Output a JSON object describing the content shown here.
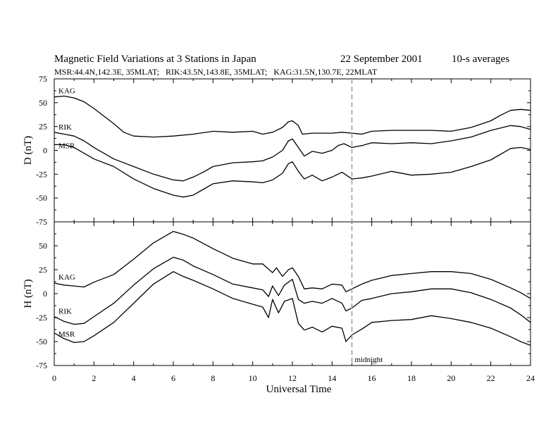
{
  "chart_data": {
    "type": "line",
    "title": "Magnetic Field Variations at 3 Stations in Japan",
    "date": "22 September 2001",
    "averaging": "10-s averages",
    "subtitle": "MSR:44.4N,142.3E, 35MLAT;   RIK:43.5N,143.8E, 35MLAT;   KAG:31.5N,130.7E, 22MLAT",
    "xlabel": "Universal Time",
    "xlim": [
      0,
      24
    ],
    "xticks": [
      "0",
      "2",
      "4",
      "6",
      "8",
      "10",
      "12",
      "14",
      "16",
      "18",
      "20",
      "22",
      "24"
    ],
    "marker": {
      "x": 15,
      "label": "midnight",
      "style": "dashed"
    },
    "panels": [
      {
        "ylabel": "D (nT)",
        "ylim": [
          -75,
          75
        ],
        "yticks": [
          "75",
          "50",
          "25",
          "0",
          "-25",
          "-50",
          "-75"
        ],
        "series": [
          {
            "name": "KAG",
            "points": [
              [
                0,
                56
              ],
              [
                0.5,
                57
              ],
              [
                1,
                55
              ],
              [
                1.5,
                51
              ],
              [
                2,
                44
              ],
              [
                3,
                28
              ],
              [
                3.5,
                19
              ],
              [
                4,
                15
              ],
              [
                5,
                14
              ],
              [
                6,
                15
              ],
              [
                7,
                17
              ],
              [
                8,
                20
              ],
              [
                9,
                19
              ],
              [
                10,
                20
              ],
              [
                10.5,
                17
              ],
              [
                11,
                19
              ],
              [
                11.5,
                24
              ],
              [
                11.8,
                30
              ],
              [
                12,
                31
              ],
              [
                12.3,
                26
              ],
              [
                12.5,
                17
              ],
              [
                13,
                18
              ],
              [
                13.5,
                18
              ],
              [
                14,
                18
              ],
              [
                14.5,
                19
              ],
              [
                15,
                18
              ],
              [
                15.5,
                17
              ],
              [
                16,
                20
              ],
              [
                17,
                21
              ],
              [
                18,
                21
              ],
              [
                19,
                21
              ],
              [
                20,
                20
              ],
              [
                21,
                24
              ],
              [
                22,
                31
              ],
              [
                22.5,
                37
              ],
              [
                23,
                42
              ],
              [
                23.5,
                43
              ],
              [
                24,
                42
              ]
            ]
          },
          {
            "name": "RIK",
            "points": [
              [
                0,
                19
              ],
              [
                0.5,
                17
              ],
              [
                1,
                15
              ],
              [
                1.5,
                10
              ],
              [
                2,
                3
              ],
              [
                3,
                -9
              ],
              [
                4,
                -17
              ],
              [
                5,
                -25
              ],
              [
                6,
                -31
              ],
              [
                6.5,
                -32
              ],
              [
                7,
                -28
              ],
              [
                7.5,
                -23
              ],
              [
                8,
                -17
              ],
              [
                9,
                -13
              ],
              [
                10,
                -12
              ],
              [
                10.5,
                -11
              ],
              [
                11,
                -7
              ],
              [
                11.5,
                0
              ],
              [
                11.8,
                10
              ],
              [
                12,
                12
              ],
              [
                12.3,
                3
              ],
              [
                12.6,
                -6
              ],
              [
                13,
                -1
              ],
              [
                13.5,
                -3
              ],
              [
                14,
                0
              ],
              [
                14.3,
                5
              ],
              [
                14.6,
                7
              ],
              [
                15,
                3
              ],
              [
                15.5,
                5
              ],
              [
                16,
                8
              ],
              [
                17,
                7
              ],
              [
                18,
                8
              ],
              [
                19,
                7
              ],
              [
                20,
                10
              ],
              [
                21,
                14
              ],
              [
                22,
                21
              ],
              [
                23,
                26
              ],
              [
                23.5,
                25
              ],
              [
                24,
                22
              ]
            ]
          },
          {
            "name": "MSR",
            "points": [
              [
                0,
                6
              ],
              [
                0.5,
                6
              ],
              [
                1,
                3
              ],
              [
                1.5,
                -3
              ],
              [
                2,
                -9
              ],
              [
                3,
                -17
              ],
              [
                4,
                -30
              ],
              [
                5,
                -40
              ],
              [
                6,
                -47
              ],
              [
                6.5,
                -49
              ],
              [
                7,
                -47
              ],
              [
                7.5,
                -41
              ],
              [
                8,
                -35
              ],
              [
                9,
                -32
              ],
              [
                10,
                -33
              ],
              [
                10.5,
                -34
              ],
              [
                11,
                -31
              ],
              [
                11.5,
                -24
              ],
              [
                11.8,
                -14
              ],
              [
                12,
                -12
              ],
              [
                12.3,
                -22
              ],
              [
                12.6,
                -30
              ],
              [
                13,
                -26
              ],
              [
                13.5,
                -32
              ],
              [
                14,
                -28
              ],
              [
                14.5,
                -23
              ],
              [
                15,
                -30
              ],
              [
                15.5,
                -29
              ],
              [
                16,
                -27
              ],
              [
                17,
                -22
              ],
              [
                18,
                -26
              ],
              [
                19,
                -25
              ],
              [
                20,
                -23
              ],
              [
                21,
                -17
              ],
              [
                22,
                -10
              ],
              [
                23,
                2
              ],
              [
                23.5,
                3
              ],
              [
                24,
                1
              ]
            ]
          }
        ]
      },
      {
        "ylabel": "H (nT)",
        "ylim": [
          -75,
          75
        ],
        "yticks": [
          "50",
          "25",
          "0",
          "-25",
          "-50",
          "-75"
        ],
        "series": [
          {
            "name": "KAG",
            "points": [
              [
                0,
                11
              ],
              [
                0.5,
                9
              ],
              [
                1,
                8
              ],
              [
                1.5,
                7
              ],
              [
                2,
                12
              ],
              [
                3,
                20
              ],
              [
                4,
                36
              ],
              [
                5,
                53
              ],
              [
                6,
                65
              ],
              [
                6.5,
                62
              ],
              [
                7,
                58
              ],
              [
                8,
                47
              ],
              [
                9,
                37
              ],
              [
                9.5,
                34
              ],
              [
                10,
                31
              ],
              [
                10.5,
                31
              ],
              [
                11,
                22
              ],
              [
                11.2,
                27
              ],
              [
                11.5,
                18
              ],
              [
                11.8,
                25
              ],
              [
                12,
                27
              ],
              [
                12.3,
                18
              ],
              [
                12.6,
                5
              ],
              [
                13,
                6
              ],
              [
                13.5,
                5
              ],
              [
                14,
                10
              ],
              [
                14.5,
                9
              ],
              [
                14.7,
                2
              ],
              [
                15,
                5
              ],
              [
                15.5,
                10
              ],
              [
                16,
                14
              ],
              [
                17,
                19
              ],
              [
                18,
                21
              ],
              [
                19,
                23
              ],
              [
                20,
                23
              ],
              [
                21,
                21
              ],
              [
                22,
                15
              ],
              [
                23,
                6
              ],
              [
                23.5,
                1
              ],
              [
                24,
                -5
              ]
            ]
          },
          {
            "name": "RIK",
            "points": [
              [
                0,
                -24
              ],
              [
                0.5,
                -29
              ],
              [
                1,
                -32
              ],
              [
                1.5,
                -31
              ],
              [
                2,
                -24
              ],
              [
                3,
                -10
              ],
              [
                4,
                9
              ],
              [
                5,
                26
              ],
              [
                6,
                38
              ],
              [
                6.5,
                35
              ],
              [
                7,
                29
              ],
              [
                8,
                20
              ],
              [
                9,
                10
              ],
              [
                10,
                6
              ],
              [
                10.5,
                4
              ],
              [
                10.8,
                -3
              ],
              [
                11,
                8
              ],
              [
                11.3,
                -2
              ],
              [
                11.6,
                9
              ],
              [
                12,
                15
              ],
              [
                12.3,
                -6
              ],
              [
                12.6,
                -10
              ],
              [
                13,
                -8
              ],
              [
                13.5,
                -10
              ],
              [
                14,
                -5
              ],
              [
                14.5,
                -10
              ],
              [
                14.7,
                -18
              ],
              [
                15,
                -15
              ],
              [
                15.5,
                -7
              ],
              [
                16,
                -5
              ],
              [
                17,
                0
              ],
              [
                18,
                2
              ],
              [
                19,
                5
              ],
              [
                20,
                5
              ],
              [
                21,
                1
              ],
              [
                22,
                -6
              ],
              [
                23,
                -15
              ],
              [
                23.5,
                -22
              ],
              [
                24,
                -30
              ]
            ]
          },
          {
            "name": "MSR",
            "points": [
              [
                0,
                -41
              ],
              [
                0.5,
                -47
              ],
              [
                1,
                -51
              ],
              [
                1.5,
                -50
              ],
              [
                2,
                -44
              ],
              [
                3,
                -30
              ],
              [
                4,
                -10
              ],
              [
                5,
                10
              ],
              [
                6,
                23
              ],
              [
                6.5,
                18
              ],
              [
                7,
                14
              ],
              [
                8,
                5
              ],
              [
                9,
                -5
              ],
              [
                10,
                -11
              ],
              [
                10.5,
                -14
              ],
              [
                10.8,
                -25
              ],
              [
                11,
                -6
              ],
              [
                11.3,
                -20
              ],
              [
                11.6,
                -8
              ],
              [
                12,
                -5
              ],
              [
                12.3,
                -31
              ],
              [
                12.6,
                -38
              ],
              [
                13,
                -35
              ],
              [
                13.5,
                -40
              ],
              [
                14,
                -34
              ],
              [
                14.5,
                -36
              ],
              [
                14.7,
                -50
              ],
              [
                15,
                -43
              ],
              [
                15.5,
                -37
              ],
              [
                16,
                -30
              ],
              [
                17,
                -28
              ],
              [
                18,
                -27
              ],
              [
                19,
                -23
              ],
              [
                20,
                -26
              ],
              [
                21,
                -30
              ],
              [
                22,
                -36
              ],
              [
                23,
                -45
              ],
              [
                23.5,
                -50
              ],
              [
                24,
                -54
              ]
            ]
          }
        ]
      }
    ]
  }
}
